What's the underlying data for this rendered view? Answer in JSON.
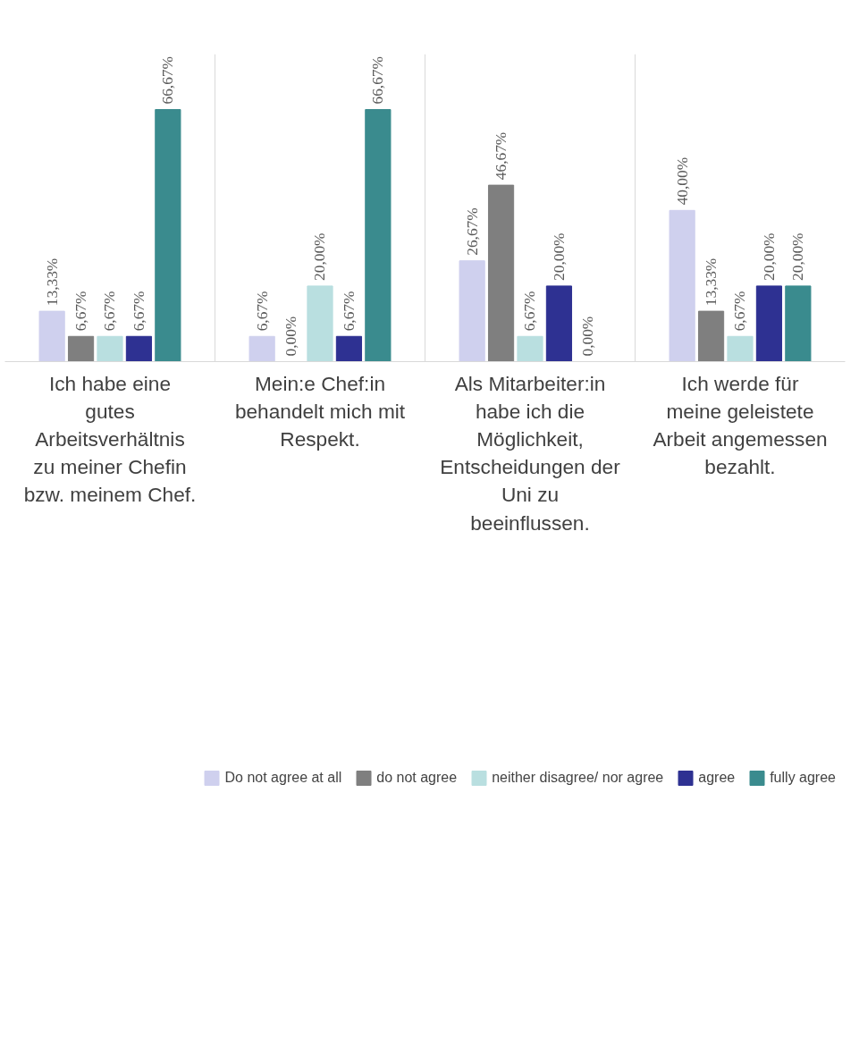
{
  "chart_data": {
    "type": "bar",
    "categories": [
      "Ich habe eine gutes Arbeitsverhältnis zu meiner Chefin bzw. meinem Chef.",
      "Mein:e Chef:in behandelt mich mit Respekt.",
      "Als Mitarbeiter:in habe ich die Möglichkeit, Entscheidungen der Uni zu beeinflussen.",
      "Ich werde für meine geleistete Arbeit angemessen bezahlt."
    ],
    "series": [
      {
        "name": "Do not agree at all",
        "color": "#cfd0ee",
        "values": [
          13.33,
          6.67,
          26.67,
          40.0
        ],
        "value_labels": [
          "13,33%",
          "6,67%",
          "26,67%",
          "40,00%"
        ]
      },
      {
        "name": "do not agree",
        "color": "#7f7f7f",
        "values": [
          6.67,
          0.0,
          46.67,
          13.33
        ],
        "value_labels": [
          "6,67%",
          "0,00%",
          "46,67%",
          "13,33%"
        ]
      },
      {
        "name": "neither disagree/ nor agree",
        "color": "#b9dfe0",
        "values": [
          6.67,
          20.0,
          6.67,
          6.67
        ],
        "value_labels": [
          "6,67%",
          "20,00%",
          "6,67%",
          "6,67%"
        ]
      },
      {
        "name": "agree",
        "color": "#2e3192",
        "values": [
          6.67,
          6.67,
          20.0,
          20.0
        ],
        "value_labels": [
          "6,67%",
          "6,67%",
          "20,00%",
          "20,00%"
        ]
      },
      {
        "name": "fully agree",
        "color": "#3a8b8e",
        "values": [
          66.67,
          66.67,
          0.0,
          20.0
        ],
        "value_labels": [
          "66,67%",
          "66,67%",
          "0,00%",
          "20,00%"
        ]
      }
    ],
    "grid": "x",
    "legend": "bottom"
  }
}
